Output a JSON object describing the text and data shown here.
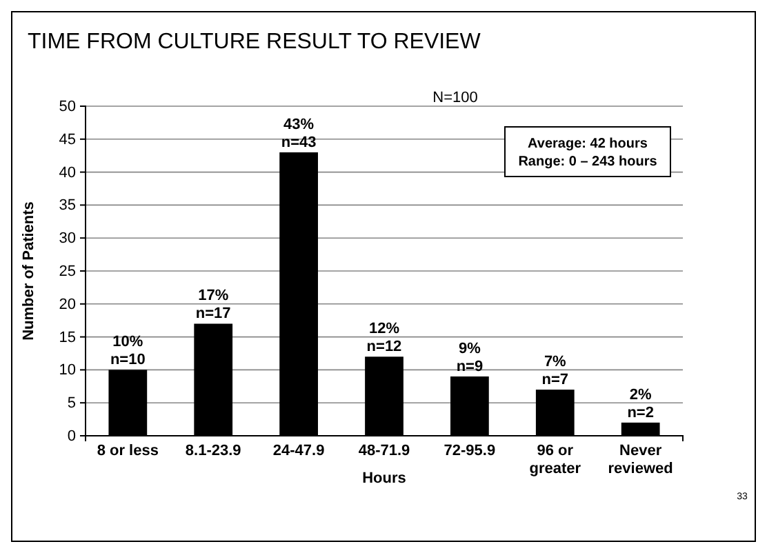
{
  "chart_data": {
    "type": "bar",
    "title": "TIME FROM CULTURE RESULT TO REVIEW",
    "xlabel": "Hours",
    "ylabel": "Number of Patients",
    "categories": [
      "8 or less",
      "8.1-23.9",
      "24-47.9",
      "48-71.9",
      "72-95.9",
      "96 or greater",
      "Never reviewed"
    ],
    "values": [
      10,
      17,
      43,
      12,
      9,
      7,
      2
    ],
    "value_labels": [
      "10%\nn=10",
      "17%\nn=17",
      "43%\nn=43",
      "12%\nn=12",
      "9%\nn=9",
      "7%\nn=7",
      "2%\nn=2"
    ],
    "color": "#000000",
    "ylim": [
      0,
      50
    ],
    "yticks": [
      0,
      5,
      10,
      15,
      20,
      25,
      30,
      35,
      40,
      45,
      50
    ],
    "grid": "y",
    "annotations": [
      "N=100",
      "Average: 42 hours\nRange: 0 – 243 hours",
      "33"
    ]
  }
}
